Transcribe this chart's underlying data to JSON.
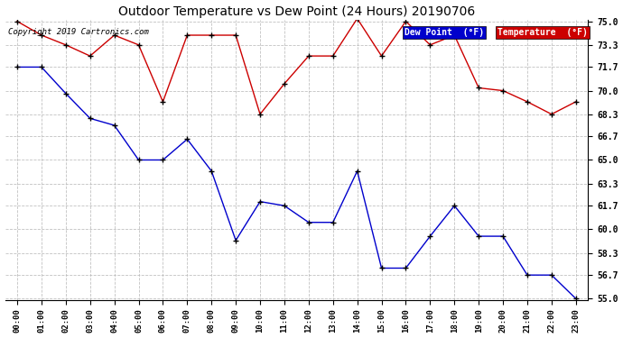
{
  "title": "Outdoor Temperature vs Dew Point (24 Hours) 20190706",
  "copyright": "Copyright 2019 Cartronics.com",
  "x_labels": [
    "00:00",
    "01:00",
    "02:00",
    "03:00",
    "04:00",
    "05:00",
    "06:00",
    "07:00",
    "08:00",
    "09:00",
    "10:00",
    "11:00",
    "12:00",
    "13:00",
    "14:00",
    "15:00",
    "16:00",
    "17:00",
    "18:00",
    "19:00",
    "20:00",
    "21:00",
    "22:00",
    "23:00"
  ],
  "temperature": [
    75.0,
    74.0,
    73.3,
    72.5,
    74.0,
    73.3,
    69.2,
    74.0,
    74.0,
    74.0,
    68.3,
    70.5,
    72.5,
    72.5,
    75.2,
    72.5,
    75.0,
    73.3,
    74.0,
    70.2,
    70.0,
    69.2,
    68.3,
    69.2
  ],
  "dew_point": [
    71.7,
    71.7,
    69.8,
    68.0,
    67.5,
    65.0,
    65.0,
    66.5,
    64.2,
    59.2,
    62.0,
    61.7,
    60.5,
    60.5,
    64.2,
    57.2,
    57.2,
    59.5,
    61.7,
    59.5,
    59.5,
    56.7,
    56.7,
    55.0
  ],
  "temp_color": "#cc0000",
  "dew_color": "#0000cc",
  "ylim_min": 55.0,
  "ylim_max": 75.0,
  "yticks": [
    55.0,
    56.7,
    58.3,
    60.0,
    61.7,
    63.3,
    65.0,
    66.7,
    68.3,
    70.0,
    71.7,
    73.3,
    75.0
  ],
  "background_color": "#ffffff",
  "grid_color": "#bbbbbb",
  "legend_dew_bg": "#0000cc",
  "legend_temp_bg": "#cc0000"
}
